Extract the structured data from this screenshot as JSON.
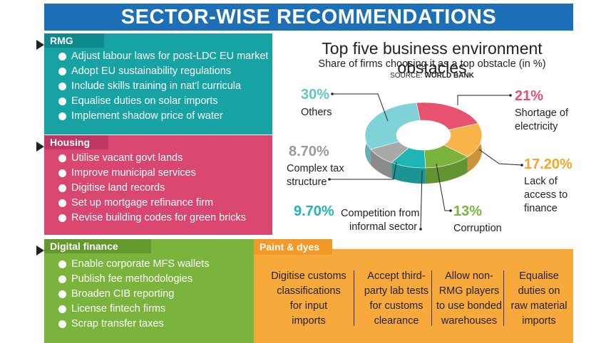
{
  "title": "SECTOR-WISE RECOMMENDATIONS",
  "rmg": {
    "tag": "RMG",
    "items": [
      "Adjust labour laws for post-LDC EU market",
      "Adopt EU sustainability regulations",
      "Include skills training in nat'l curricula",
      "Equalise duties on solar imports",
      "Implement shadow price of water"
    ]
  },
  "housing": {
    "tag": "Housing",
    "items": [
      "Utilise vacant govt lands",
      "Improve municipal services",
      "Digitise land records",
      "Set up mortgage refinance firm",
      "Revise building codes for green bricks"
    ]
  },
  "digital_finance": {
    "tag": "Digital finance",
    "items": [
      "Enable corporate MFS wallets",
      "Publish fee methodologies",
      "Broaden CIB reporting",
      "License fintech firms",
      "Scrap transfer taxes"
    ]
  },
  "paint_dyes": {
    "tag": "Paint & dyes",
    "columns": [
      [
        "Digitise customs",
        "classifications",
        "for input",
        "imports"
      ],
      [
        "Accept third-",
        "party lab tests",
        "for customs",
        "clearance"
      ],
      [
        "Allow non-",
        "RMG players",
        "to use bonded",
        "warehouses"
      ],
      [
        "Equalise",
        "duties on",
        "raw material",
        "imports"
      ]
    ]
  },
  "chart_data": {
    "type": "pie",
    "title": "Top five business environment obstacles",
    "subtitle": "Share of firms choosing it as a top obstacle (in %)",
    "source_label": "SOURCE:",
    "source_name": "WORLD BANK",
    "slices": [
      {
        "label": "Shortage of electricity",
        "value": 21,
        "display": "21%",
        "color": "#e8516f",
        "label_lines": [
          "Shortage of",
          "electricity"
        ]
      },
      {
        "label": "Lack of access to finance",
        "value": 17.2,
        "display": "17.20%",
        "color": "#f9b447",
        "label_lines": [
          "Lack of",
          "access to",
          "finance"
        ]
      },
      {
        "label": "Corruption",
        "value": 13,
        "display": "13%",
        "color": "#7ab43d",
        "label_lines": [
          "Corruption"
        ]
      },
      {
        "label": "Competition from informal sector",
        "value": 9.7,
        "display": "9.70%",
        "color": "#20b5b5",
        "label_lines": [
          "Competition from",
          "informal sector"
        ]
      },
      {
        "label": "Complex tax structure",
        "value": 8.7,
        "display": "8.70%",
        "color": "#a9a9a9",
        "label_lines": [
          "Complex tax",
          "structure"
        ]
      },
      {
        "label": "Others",
        "value": 30,
        "display": "30%",
        "color": "#7fd3d6",
        "label_lines": [
          "Others"
        ]
      }
    ]
  }
}
